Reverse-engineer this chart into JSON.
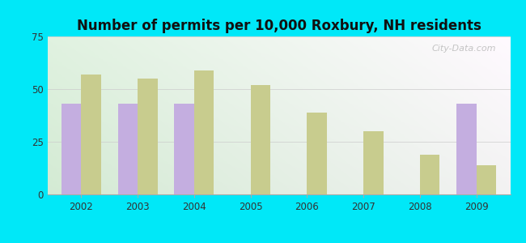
{
  "title": "Number of permits per 10,000 Roxbury, NH residents",
  "years": [
    2002,
    2003,
    2004,
    2005,
    2006,
    2007,
    2008,
    2009
  ],
  "roxbury": [
    43,
    43,
    43,
    0,
    0,
    0,
    0,
    43
  ],
  "nh_avg": [
    57,
    55,
    59,
    52,
    39,
    30,
    19,
    14
  ],
  "roxbury_color": "#c4aee0",
  "nh_avg_color": "#c8cc8e",
  "bg_outer": "#00e8f8",
  "bg_plot_topleft": "#e8f5e9",
  "bg_plot_topright": "#f0f8f8",
  "bg_plot_bottom": "#d8f0dc",
  "ylim": [
    0,
    75
  ],
  "yticks": [
    0,
    25,
    50,
    75
  ],
  "bar_width": 0.35,
  "title_fontsize": 12,
  "tick_fontsize": 8.5,
  "legend_fontsize": 8.5
}
